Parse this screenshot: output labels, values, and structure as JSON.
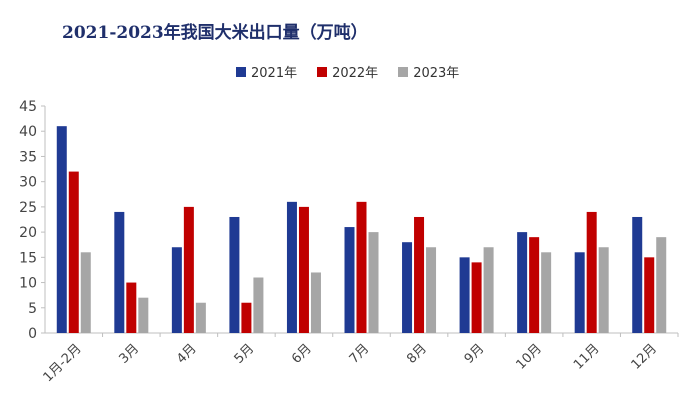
{
  "chart_data": {
    "type": "bar",
    "title": "2021-2023年我国大米出口量（万吨）",
    "categories": [
      "1月-2月",
      "3月",
      "4月",
      "5月",
      "6月",
      "7月",
      "8月",
      "9月",
      "10月",
      "11月",
      "12月"
    ],
    "series": [
      {
        "name": "2021年",
        "color": "#1f3a93",
        "values": [
          41,
          24,
          17,
          23,
          26,
          21,
          18,
          15,
          20,
          16,
          23
        ]
      },
      {
        "name": "2022年",
        "color": "#c00000",
        "values": [
          32,
          10,
          25,
          6,
          25,
          26,
          23,
          14,
          19,
          24,
          15
        ]
      },
      {
        "name": "2023年",
        "color": "#a6a6a6",
        "values": [
          16,
          7,
          6,
          11,
          12,
          20,
          17,
          17,
          16,
          17,
          19
        ]
      }
    ],
    "ylim": [
      0,
      45
    ],
    "yticks": [
      0,
      5,
      10,
      15,
      20,
      25,
      30,
      35,
      40,
      45
    ],
    "xlabel": "",
    "ylabel": "",
    "legend": "top",
    "grid": false
  }
}
